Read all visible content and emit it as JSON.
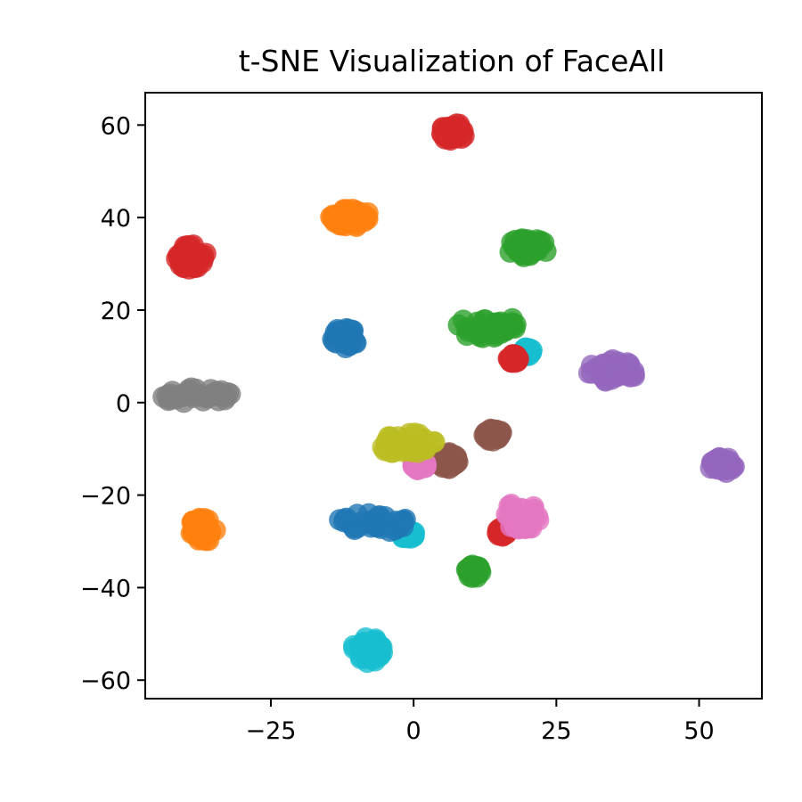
{
  "chart_data": {
    "type": "scatter",
    "title": "t-SNE Visualization of FaceAll",
    "xlabel": "",
    "ylabel": "",
    "xlim": [
      -47,
      61
    ],
    "ylim": [
      -64,
      67
    ],
    "x_ticks": [
      -25,
      0,
      25,
      50
    ],
    "x_tick_labels": [
      "−25",
      "0",
      "25",
      "50"
    ],
    "y_ticks": [
      -60,
      -40,
      -20,
      0,
      20,
      40,
      60
    ],
    "y_tick_labels": [
      "−60",
      "−40",
      "−20",
      "0",
      "20",
      "40",
      "60"
    ],
    "grid": false,
    "legend": "none",
    "marker_opacity": 0.8,
    "clusters": [
      {
        "color": "#d62728",
        "center": [
          7,
          58.5
        ],
        "spread": [
          2.5,
          2.2
        ]
      },
      {
        "color": "#ff7f0e",
        "center": [
          -11,
          40
        ],
        "spread": [
          4,
          2.2
        ]
      },
      {
        "color": "#2ca02c",
        "center": [
          20,
          33.5
        ],
        "spread": [
          4,
          2.2
        ]
      },
      {
        "color": "#d62728",
        "center": [
          -39,
          31.5
        ],
        "spread": [
          3,
          3
        ]
      },
      {
        "color": "#2ca02c",
        "center": [
          13,
          16.5
        ],
        "spread": [
          6,
          3
        ]
      },
      {
        "color": "#1f77b4",
        "center": [
          -12,
          14
        ],
        "spread": [
          2.5,
          2.5
        ]
      },
      {
        "color": "#17becf",
        "center": [
          20,
          11
        ],
        "spread": [
          1,
          1
        ]
      },
      {
        "color": "#d62728",
        "center": [
          17.5,
          9.5
        ],
        "spread": [
          1,
          1
        ]
      },
      {
        "color": "#9467bd",
        "center": [
          35,
          7
        ],
        "spread": [
          5,
          2.8
        ]
      },
      {
        "color": "#7f7f7f",
        "center": [
          -38,
          1.5
        ],
        "spread": [
          7,
          2
        ]
      },
      {
        "color": "#8c564b",
        "center": [
          14,
          -7
        ],
        "spread": [
          2,
          1.5
        ]
      },
      {
        "color": "#8c564b",
        "center": [
          6,
          -12.5
        ],
        "spread": [
          2,
          2
        ]
      },
      {
        "color": "#e377c2",
        "center": [
          1,
          -13.5
        ],
        "spread": [
          1.5,
          1.2
        ]
      },
      {
        "color": "#bcbd22",
        "center": [
          -1,
          -9
        ],
        "spread": [
          5.5,
          2.8
        ]
      },
      {
        "color": "#9467bd",
        "center": [
          54,
          -13.5
        ],
        "spread": [
          2.5,
          2
        ]
      },
      {
        "color": "#17becf",
        "center": [
          -1,
          -28.5
        ],
        "spread": [
          1.5,
          1
        ]
      },
      {
        "color": "#1f77b4",
        "center": [
          -8,
          -26
        ],
        "spread": [
          8,
          2.4
        ]
      },
      {
        "color": "#d62728",
        "center": [
          15.5,
          -28
        ],
        "spread": [
          1,
          1
        ]
      },
      {
        "color": "#e377c2",
        "center": [
          19,
          -24.5
        ],
        "spread": [
          4,
          3.5
        ]
      },
      {
        "color": "#ff7f0e",
        "center": [
          -37,
          -27.5
        ],
        "spread": [
          2.8,
          3
        ]
      },
      {
        "color": "#2ca02c",
        "center": [
          10.5,
          -36.5
        ],
        "spread": [
          1.5,
          1.5
        ]
      },
      {
        "color": "#17becf",
        "center": [
          -8,
          -53.5
        ],
        "spread": [
          3,
          3
        ]
      }
    ]
  }
}
